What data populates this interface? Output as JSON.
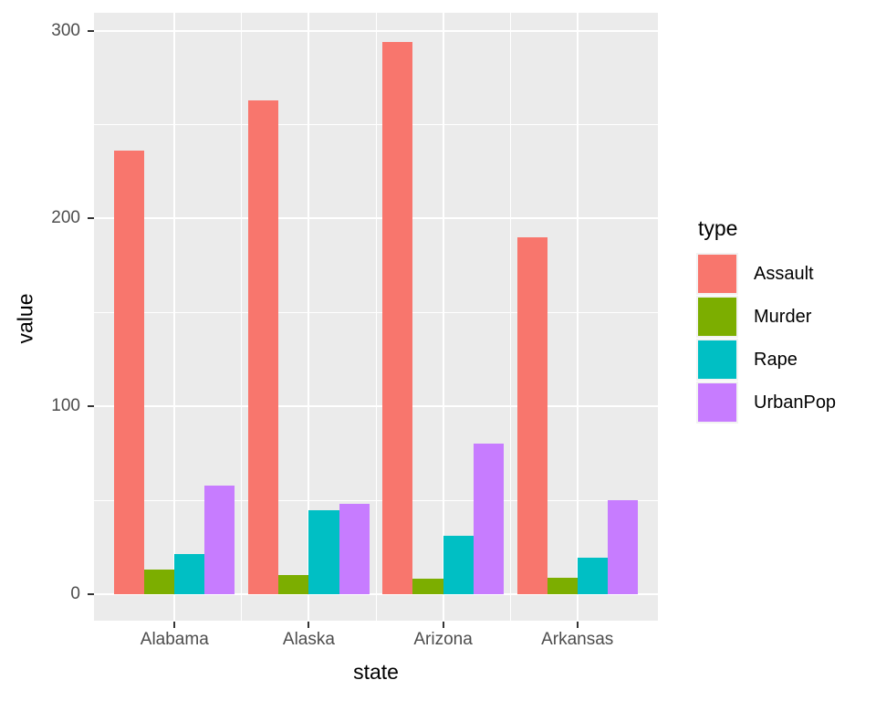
{
  "chart_data": {
    "type": "bar",
    "subtype": "grouped",
    "title": "",
    "xlabel": "state",
    "ylabel": "value",
    "legend_title": "type",
    "legend_position": "right",
    "categories": [
      "Alabama",
      "Alaska",
      "Arizona",
      "Arkansas"
    ],
    "series": [
      {
        "name": "Assault",
        "color": "#F8766D",
        "values": [
          236,
          263,
          294,
          190
        ]
      },
      {
        "name": "Murder",
        "color": "#7CAE00",
        "values": [
          13.2,
          10.0,
          8.1,
          8.8
        ]
      },
      {
        "name": "Rape",
        "color": "#00BFC4",
        "values": [
          21.2,
          44.5,
          31.0,
          19.5
        ]
      },
      {
        "name": "UrbanPop",
        "color": "#C77CFF",
        "values": [
          58,
          48,
          80,
          50
        ]
      }
    ],
    "y_major_ticks": [
      0,
      100,
      200,
      300
    ],
    "y_minor_ticks": [
      50,
      150,
      250
    ],
    "ylim": [
      -14.1,
      309.5
    ],
    "grid": "on",
    "panel_background": "#EBEBEB",
    "grid_color": "#FFFFFF",
    "tick_color": "#333333",
    "tick_label_color": "#4D4D4D"
  }
}
